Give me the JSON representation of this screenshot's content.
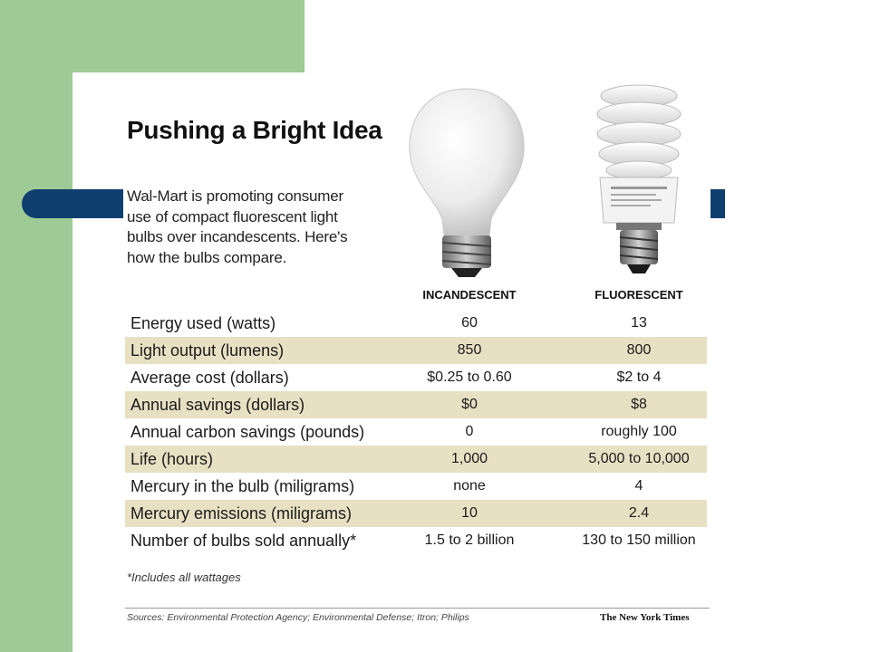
{
  "graphic": {
    "title": "Pushing a Bright Idea",
    "intro": "Wal-Mart is promoting consumer use of compact fluorescent light bulbs over incandescents. Here's how the bulbs compare.",
    "columns": {
      "incandescent": "INCANDESCENT",
      "fluorescent": "FLUORESCENT"
    },
    "rows": [
      {
        "label": "Energy used (watts)",
        "incandescent": "60",
        "fluorescent": "13"
      },
      {
        "label": "Light output (lumens)",
        "incandescent": "850",
        "fluorescent": "800"
      },
      {
        "label": "Average cost (dollars)",
        "incandescent": "$0.25 to 0.60",
        "fluorescent": "$2 to 4"
      },
      {
        "label": "Annual savings (dollars)",
        "incandescent": "$0",
        "fluorescent": "$8"
      },
      {
        "label": "Annual carbon savings (pounds)",
        "incandescent": "0",
        "fluorescent": "roughly 100"
      },
      {
        "label": "Life (hours)",
        "incandescent": "1,000",
        "fluorescent": "5,000 to 10,000"
      },
      {
        "label": "Mercury in the bulb (miligrams)",
        "incandescent": "none",
        "fluorescent": "4"
      },
      {
        "label": "Mercury emissions (miligrams)",
        "incandescent": "10",
        "fluorescent": "2.4"
      },
      {
        "label": "Number of bulbs sold annually*",
        "incandescent": "1.5 to 2 billion",
        "fluorescent": "130 to 150 million"
      }
    ],
    "footnote": "*Includes all wattages",
    "sources": "Sources: Environmental Protection Agency; Environmental Defense; Itron; Philips",
    "credit": "The New York Times"
  },
  "colors": {
    "slide_green": "#9ecb95",
    "accent_navy": "#0f3f6f",
    "row_shade": "#e8e0c3"
  },
  "icons": [
    "incandescent-bulb-icon",
    "fluorescent-bulb-icon"
  ]
}
